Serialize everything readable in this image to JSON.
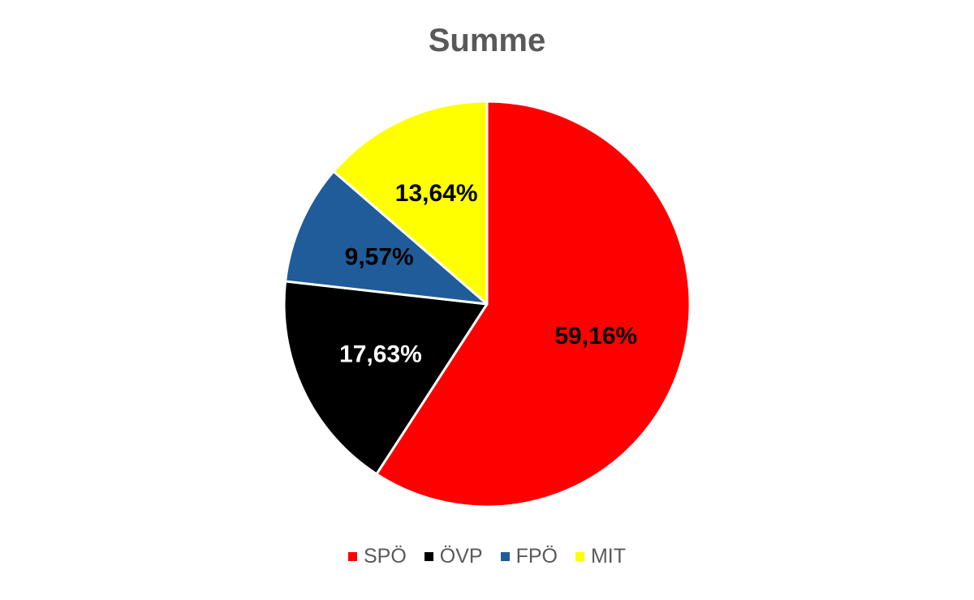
{
  "chart_data": {
    "type": "pie",
    "title": "Summe",
    "categories": [
      "SPÖ",
      "ÖVP",
      "FPÖ",
      "MIT"
    ],
    "values": [
      59.16,
      17.63,
      9.57,
      13.64
    ],
    "data_labels": [
      "59,16%",
      "17,63%",
      "9,57%",
      "13,64%"
    ],
    "colors": [
      "#ff0000",
      "#000000",
      "#1f5c99",
      "#ffff00"
    ],
    "label_colors": [
      "#000000",
      "#ffffff",
      "#000000",
      "#000000"
    ],
    "start_angle_deg": 0,
    "direction": "clockwise",
    "legend_position": "bottom"
  }
}
